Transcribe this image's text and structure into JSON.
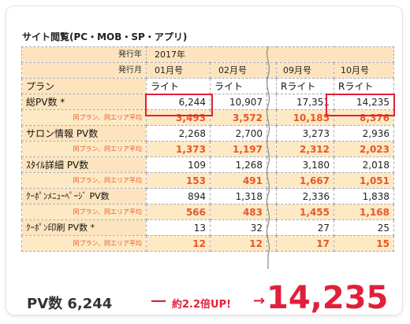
{
  "title": "サイト閲覧(PC・MOB・SP・アプリ)",
  "header": {
    "issue_year_label": "発行年",
    "issue_year_value": "2017年",
    "issue_month_label": "発行月",
    "months": [
      "01月号",
      "02月号",
      "09月号",
      "10月号"
    ]
  },
  "plan_row": {
    "label": "プラン",
    "values": [
      "ライト",
      "ライト",
      "Rライト",
      "Rライト"
    ]
  },
  "avg_label": "同プラン、同エリア平均",
  "rows": [
    {
      "label": "総PV数 *",
      "values": [
        "6,244",
        "10,907",
        "17,351",
        "14,235"
      ],
      "avg": [
        "3,493",
        "3,572",
        "10,185",
        "8,376"
      ]
    },
    {
      "label": "サロン情報 PV数",
      "values": [
        "2,268",
        "2,700",
        "3,273",
        "2,936"
      ],
      "avg": [
        "1,373",
        "1,197",
        "2,312",
        "2,023"
      ]
    },
    {
      "label": "ｽﾀｲﾙ詳細 PV数",
      "values": [
        "109",
        "1,268",
        "3,180",
        "2,018"
      ],
      "avg": [
        "153",
        "491",
        "1,667",
        "1,051"
      ]
    },
    {
      "label": "ｸｰﾎﾟﾝﾒﾆｭｰﾍﾟｰｼﾞ PV数",
      "values": [
        "894",
        "1,318",
        "2,336",
        "1,838"
      ],
      "avg": [
        "566",
        "483",
        "1,455",
        "1,168"
      ]
    },
    {
      "label": "ｸｰﾎﾟﾝ印刷 PV数 *",
      "values": [
        "13",
        "32",
        "27",
        "25"
      ],
      "avg": [
        "12",
        "12",
        "17",
        "15"
      ]
    }
  ],
  "bottom": {
    "pv_text": "PV数 6,244",
    "dash": "―",
    "growth": "約2.2倍UP!",
    "arrow": "→",
    "result": "14,235"
  },
  "colors": {
    "header_bg": "#fde4be",
    "avg_bg": "#fde9c4",
    "avg_text": "#e8562a",
    "highlight": "#e0203a"
  }
}
